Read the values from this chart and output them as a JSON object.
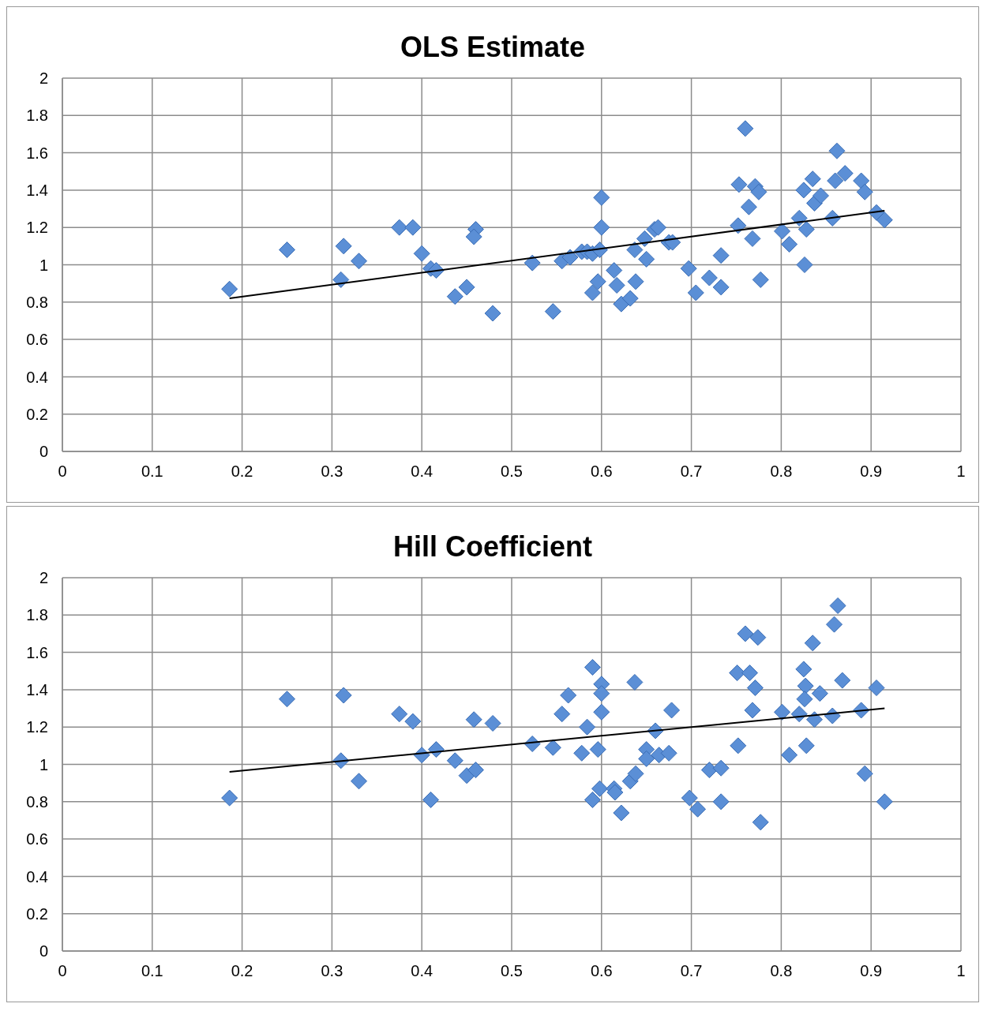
{
  "chart_data": [
    {
      "type": "scatter",
      "title": "OLS Estimate",
      "xlim": [
        0,
        1
      ],
      "ylim": [
        0,
        2
      ],
      "xticks": [
        0,
        0.1,
        0.2,
        0.3,
        0.4,
        0.5,
        0.6,
        0.7,
        0.8,
        0.9,
        1
      ],
      "yticks": [
        0,
        0.2,
        0.4,
        0.6,
        0.8,
        1,
        1.2,
        1.4,
        1.6,
        1.8,
        2
      ],
      "grid": true,
      "series": [
        {
          "marker": "diamond",
          "color": "#5b8fd6",
          "x": [
            0.186,
            0.25,
            0.313,
            0.31,
            0.33,
            0.375,
            0.39,
            0.4,
            0.41,
            0.416,
            0.437,
            0.45,
            0.46,
            0.458,
            0.479,
            0.523,
            0.546,
            0.556,
            0.565,
            0.578,
            0.584,
            0.59,
            0.59,
            0.596,
            0.598,
            0.6,
            0.6,
            0.614,
            0.617,
            0.622,
            0.632,
            0.638,
            0.637,
            0.648,
            0.65,
            0.659,
            0.663,
            0.675,
            0.679,
            0.697,
            0.705,
            0.72,
            0.733,
            0.733,
            0.752,
            0.753,
            0.76,
            0.764,
            0.768,
            0.771,
            0.775,
            0.777,
            0.801,
            0.809,
            0.82,
            0.826,
            0.825,
            0.828,
            0.835,
            0.837,
            0.844,
            0.857,
            0.86,
            0.862,
            0.871,
            0.889,
            0.893,
            0.906,
            0.915
          ],
          "values": [
            0.87,
            1.08,
            1.1,
            0.92,
            1.02,
            1.2,
            1.2,
            1.06,
            0.98,
            0.97,
            0.83,
            0.88,
            1.19,
            1.15,
            0.74,
            1.01,
            0.75,
            1.02,
            1.04,
            1.07,
            1.07,
            1.06,
            0.85,
            0.91,
            1.08,
            1.2,
            1.36,
            0.97,
            0.89,
            0.79,
            0.82,
            0.91,
            1.08,
            1.14,
            1.03,
            1.19,
            1.2,
            1.12,
            1.12,
            0.98,
            0.85,
            0.93,
            0.88,
            1.05,
            1.21,
            1.43,
            1.73,
            1.31,
            1.14,
            1.42,
            1.39,
            0.92,
            1.18,
            1.11,
            1.25,
            1,
            1.4,
            1.19,
            1.46,
            1.33,
            1.37,
            1.25,
            1.45,
            1.61,
            1.49,
            1.45,
            1.39,
            1.28,
            1.24
          ]
        },
        {
          "type": "line",
          "marker": "none",
          "color": "#000000",
          "x": [
            0.186,
            0.915
          ],
          "values": [
            0.82,
            1.29
          ]
        }
      ]
    },
    {
      "type": "scatter",
      "title": "Hill Coefficient",
      "xlim": [
        0,
        1
      ],
      "ylim": [
        0,
        2
      ],
      "xticks": [
        0,
        0.1,
        0.2,
        0.3,
        0.4,
        0.5,
        0.6,
        0.7,
        0.8,
        0.9,
        1
      ],
      "yticks": [
        0,
        0.2,
        0.4,
        0.6,
        0.8,
        1,
        1.2,
        1.4,
        1.6,
        1.8,
        2
      ],
      "grid": true,
      "series": [
        {
          "marker": "diamond",
          "color": "#5b8fd6",
          "x": [
            0.186,
            0.25,
            0.31,
            0.313,
            0.33,
            0.375,
            0.39,
            0.4,
            0.41,
            0.416,
            0.437,
            0.45,
            0.458,
            0.46,
            0.479,
            0.523,
            0.546,
            0.556,
            0.563,
            0.578,
            0.584,
            0.59,
            0.59,
            0.596,
            0.598,
            0.6,
            0.6,
            0.6,
            0.614,
            0.615,
            0.622,
            0.632,
            0.638,
            0.637,
            0.65,
            0.65,
            0.66,
            0.664,
            0.675,
            0.678,
            0.698,
            0.707,
            0.72,
            0.733,
            0.733,
            0.752,
            0.751,
            0.76,
            0.765,
            0.768,
            0.771,
            0.774,
            0.777,
            0.801,
            0.809,
            0.82,
            0.825,
            0.827,
            0.826,
            0.828,
            0.835,
            0.837,
            0.843,
            0.857,
            0.859,
            0.863,
            0.868,
            0.889,
            0.893,
            0.906,
            0.915
          ],
          "values": [
            0.82,
            1.35,
            1.02,
            1.37,
            0.91,
            1.27,
            1.23,
            1.05,
            0.81,
            1.08,
            1.02,
            0.94,
            1.24,
            0.97,
            1.22,
            1.11,
            1.09,
            1.27,
            1.37,
            1.06,
            1.2,
            1.52,
            0.81,
            1.08,
            0.87,
            1.43,
            1.38,
            1.28,
            0.87,
            0.85,
            0.74,
            0.91,
            0.95,
            1.44,
            1.08,
            1.03,
            1.18,
            1.05,
            1.06,
            1.29,
            0.82,
            0.76,
            0.97,
            0.98,
            0.8,
            1.1,
            1.49,
            1.7,
            1.49,
            1.29,
            1.41,
            1.68,
            0.69,
            1.28,
            1.05,
            1.27,
            1.51,
            1.42,
            1.35,
            1.1,
            1.65,
            1.24,
            1.38,
            1.26,
            1.75,
            1.85,
            1.45,
            1.29,
            0.95,
            1.41,
            0.8
          ]
        },
        {
          "type": "line",
          "marker": "none",
          "color": "#000000",
          "x": [
            0.186,
            0.915
          ],
          "values": [
            0.96,
            1.3
          ]
        }
      ]
    }
  ]
}
